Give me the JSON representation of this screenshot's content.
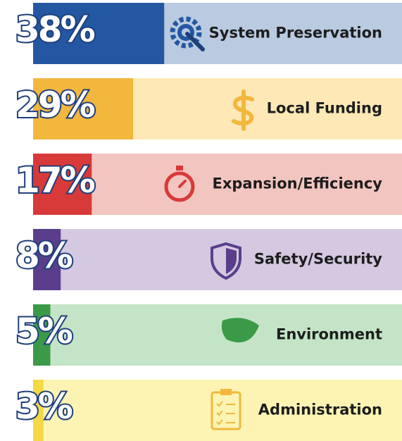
{
  "chart_data": {
    "type": "bar",
    "orientation": "horizontal",
    "categories": [
      "System Preservation",
      "Local Funding",
      "Expansion/Efficiency",
      "Safety/Security",
      "Environment",
      "Administration"
    ],
    "values": [
      38,
      29,
      17,
      8,
      5,
      3
    ],
    "value_labels": [
      "38%",
      "29%",
      "17%",
      "8%",
      "5%",
      "3%"
    ],
    "colors": [
      "#2457a2",
      "#f3b73d",
      "#d73a38",
      "#5a3e8c",
      "#3b9a48",
      "#f4d844"
    ],
    "background_colors": [
      "#b9cae1",
      "#fde8b6",
      "#f2c5c0",
      "#d4c9e0",
      "#c3e4c7",
      "#fdf4b3"
    ]
  }
}
